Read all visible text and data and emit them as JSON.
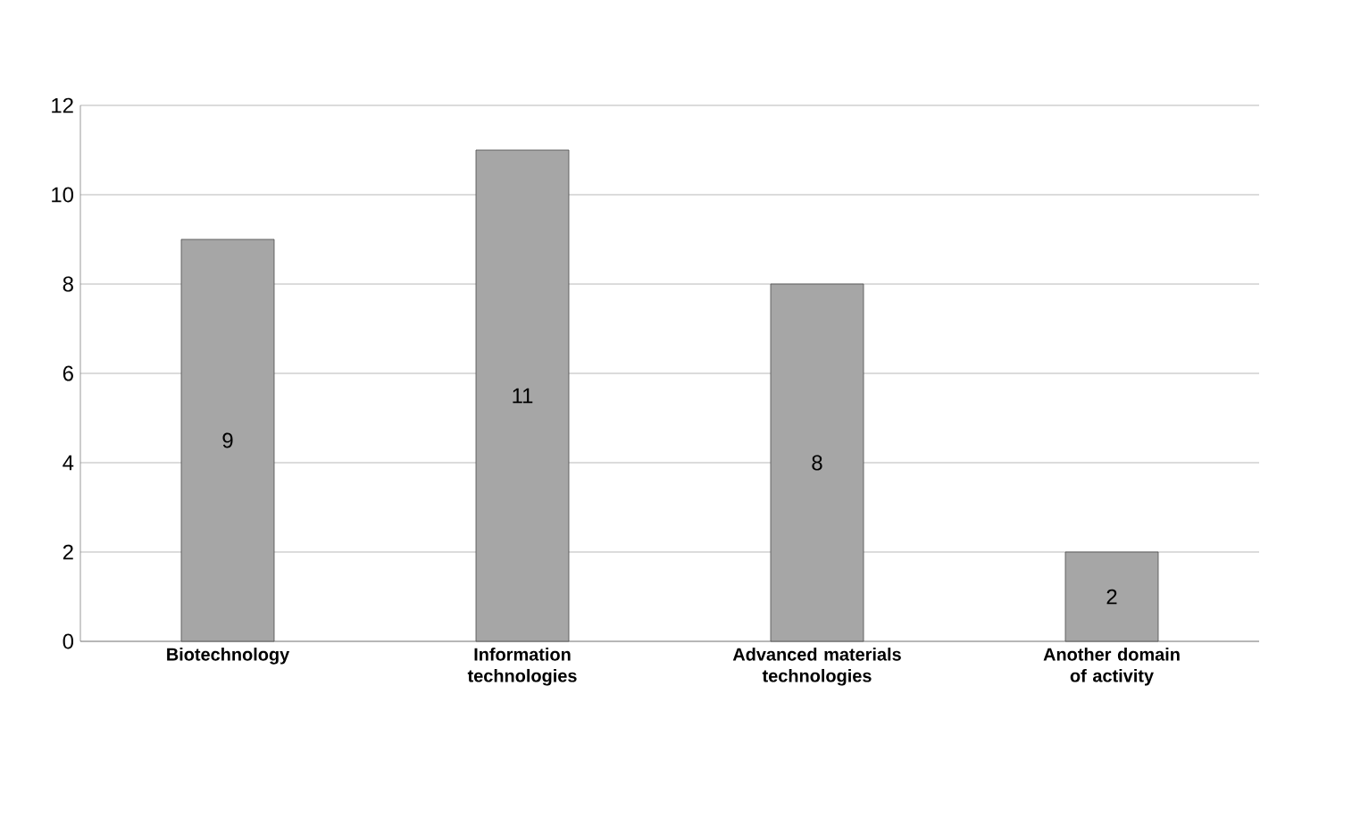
{
  "chart_data": {
    "type": "bar",
    "categories": [
      "Biotechnology",
      "Information technologies",
      "Advanced materials technologies",
      "Another domain of activity"
    ],
    "values": [
      9,
      11,
      8,
      2
    ],
    "color": "#a6a6a6",
    "ylim": [
      0,
      12
    ],
    "yticks": [
      0,
      2,
      4,
      6,
      8,
      10,
      12
    ],
    "grid": "y",
    "data_labels": true
  }
}
